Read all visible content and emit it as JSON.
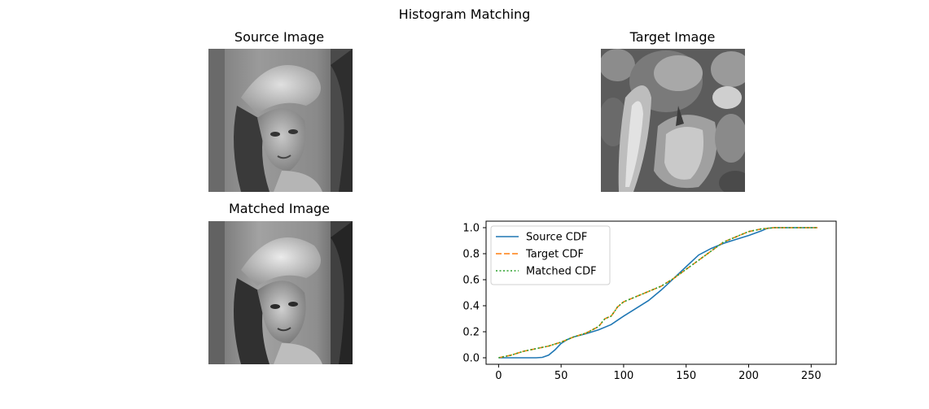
{
  "figure": {
    "title": "Histogram Matching"
  },
  "panels": {
    "source": {
      "title": "Source Image"
    },
    "target": {
      "title": "Target Image"
    },
    "matched": {
      "title": "Matched Image"
    }
  },
  "colors": {
    "source": "#1f77b4",
    "target": "#ff7f0e",
    "matched": "#2ca02c"
  },
  "chart_data": {
    "type": "line",
    "title": "",
    "xlabel": "",
    "ylabel": "",
    "xlim": [
      -10,
      270
    ],
    "ylim": [
      -0.05,
      1.05
    ],
    "xticks": [
      0,
      50,
      100,
      150,
      200,
      250
    ],
    "yticks": [
      0.0,
      0.2,
      0.4,
      0.6,
      0.8,
      1.0
    ],
    "xtick_labels": [
      "0",
      "50",
      "100",
      "150",
      "200",
      "250"
    ],
    "ytick_labels": [
      "0.0",
      "0.2",
      "0.4",
      "0.6",
      "0.8",
      "1.0"
    ],
    "grid": false,
    "legend": "upper-left",
    "series": [
      {
        "name": "Source CDF",
        "style": "solid",
        "x": [
          0,
          20,
          30,
          35,
          40,
          45,
          50,
          55,
          60,
          70,
          80,
          90,
          100,
          110,
          120,
          130,
          140,
          150,
          160,
          170,
          180,
          190,
          200,
          210,
          215,
          220,
          240,
          255
        ],
        "y": [
          0.0,
          0.0,
          0.0,
          0.003,
          0.02,
          0.06,
          0.11,
          0.14,
          0.16,
          0.185,
          0.215,
          0.255,
          0.32,
          0.38,
          0.44,
          0.52,
          0.61,
          0.7,
          0.79,
          0.84,
          0.88,
          0.91,
          0.94,
          0.975,
          0.995,
          1.0,
          1.0,
          1.0
        ]
      },
      {
        "name": "Target CDF",
        "style": "dashed",
        "x": [
          0,
          10,
          20,
          30,
          40,
          50,
          60,
          70,
          80,
          85,
          90,
          93,
          95,
          100,
          110,
          120,
          130,
          140,
          150,
          160,
          170,
          180,
          190,
          200,
          210,
          220,
          240,
          255
        ],
        "y": [
          0.0,
          0.02,
          0.05,
          0.07,
          0.09,
          0.12,
          0.16,
          0.19,
          0.24,
          0.3,
          0.32,
          0.36,
          0.39,
          0.43,
          0.47,
          0.51,
          0.55,
          0.61,
          0.68,
          0.75,
          0.82,
          0.89,
          0.93,
          0.97,
          0.99,
          1.0,
          1.0,
          1.0
        ]
      },
      {
        "name": "Matched CDF",
        "style": "dotted",
        "x": [
          0,
          10,
          20,
          30,
          40,
          50,
          60,
          70,
          80,
          85,
          90,
          93,
          95,
          100,
          110,
          120,
          130,
          140,
          150,
          160,
          170,
          180,
          190,
          200,
          210,
          220,
          240,
          255
        ],
        "y": [
          0.0,
          0.02,
          0.05,
          0.07,
          0.09,
          0.12,
          0.16,
          0.19,
          0.24,
          0.3,
          0.32,
          0.36,
          0.39,
          0.43,
          0.47,
          0.51,
          0.55,
          0.61,
          0.68,
          0.75,
          0.82,
          0.89,
          0.93,
          0.97,
          0.99,
          1.0,
          1.0,
          1.0
        ]
      }
    ]
  }
}
